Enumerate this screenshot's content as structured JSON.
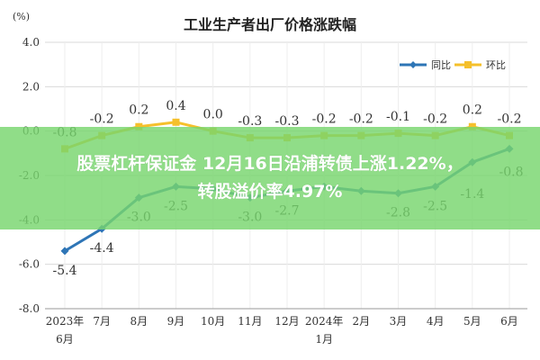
{
  "banner": {
    "line1": "股票杠杆保证金 12月16日沿浦转债上涨1.22%，",
    "line2": "转股溢价率4.97%"
  },
  "chart_data": {
    "type": "line",
    "title": "工业生产者出厂价格涨跌幅",
    "y_unit": "(%)",
    "ylim": [
      -8.0,
      4.0
    ],
    "yticks": [
      "4.0",
      "2.0",
      "0.0",
      "-2.0",
      "-4.0",
      "-6.0",
      "-8.0"
    ],
    "ytick_values": [
      4,
      2,
      0,
      -2,
      -4,
      -6,
      -8
    ],
    "categories": [
      "2023年6月",
      "7月",
      "8月",
      "9月",
      "10月",
      "11月",
      "12月",
      "2024年1月",
      "2月",
      "3月",
      "4月",
      "5月",
      "6月"
    ],
    "category_lines": [
      [
        "2023年",
        "6月"
      ],
      [
        "7月"
      ],
      [
        "8月"
      ],
      [
        "9月"
      ],
      [
        "10月"
      ],
      [
        "11月"
      ],
      [
        "12月"
      ],
      [
        "2024年",
        "1月"
      ],
      [
        "2月"
      ],
      [
        "3月"
      ],
      [
        "4月"
      ],
      [
        "5月"
      ],
      [
        "6月"
      ]
    ],
    "grid": true,
    "legend_position": "top-right",
    "series": [
      {
        "name": "同比",
        "color": "#2e75b6",
        "values": [
          -5.4,
          -4.4,
          -3.0,
          -2.5,
          -2.6,
          -3.0,
          -2.7,
          -2.5,
          -2.7,
          -2.8,
          -2.5,
          -1.4,
          -0.8
        ],
        "labels": [
          "-5.4",
          "-4.4",
          "-3.0",
          "-2.5",
          "",
          "-3.0",
          "-2.7",
          "",
          "",
          "-2.8",
          "-2.5",
          "-1.4",
          "-0.8"
        ]
      },
      {
        "name": "环比",
        "color": "#f5c02b",
        "values": [
          -0.8,
          -0.2,
          0.2,
          0.4,
          0.0,
          -0.3,
          -0.3,
          -0.2,
          -0.2,
          -0.1,
          -0.2,
          0.2,
          -0.2
        ],
        "labels": [
          "-0.8",
          "-0.2",
          "0.2",
          "0.4",
          "0.0",
          "-0.3",
          "-0.3",
          "-0.2",
          "-0.2",
          "-0.1",
          "-0.2",
          "0.2",
          "-0.2"
        ]
      }
    ]
  }
}
